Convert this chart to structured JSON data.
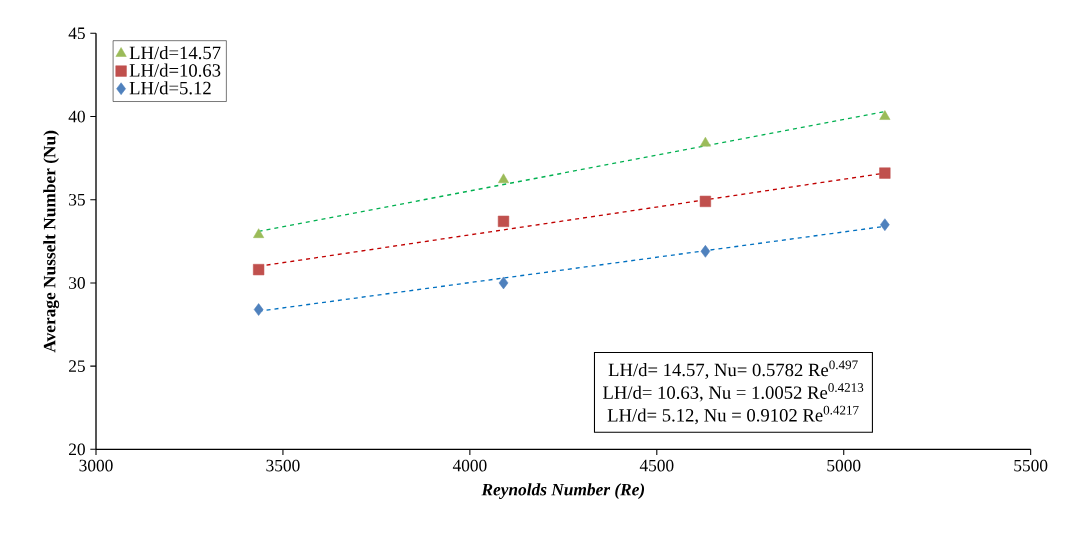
{
  "chart_data": {
    "type": "scatter",
    "xlabel": "Reynolds Number (Re)",
    "ylabel": "Average Nusselt Number (Nu)",
    "xlim": [
      3000,
      5500
    ],
    "xticks": [
      3000,
      3500,
      4000,
      4500,
      5000,
      5500
    ],
    "ylim": [
      20,
      45
    ],
    "yticks": [
      20,
      25,
      30,
      35,
      40,
      45
    ],
    "grid": false,
    "legend": "top left",
    "series": [
      {
        "name": "LH/d=14.57",
        "color": "#9bbb59",
        "marker": "triangle",
        "x": [
          3435,
          4090,
          4630,
          5110
        ],
        "values": [
          32.9,
          36.2,
          38.4,
          40.0
        ]
      },
      {
        "name": "LH/d=10.63",
        "color": "#c0504d",
        "marker": "square",
        "x": [
          3435,
          4090,
          4630,
          5110
        ],
        "values": [
          30.8,
          33.7,
          34.9,
          36.6
        ]
      },
      {
        "name": "LH/d=5.12",
        "color": "#4f81bd",
        "marker": "diamond",
        "x": [
          3435,
          4090,
          4630,
          5110
        ],
        "values": [
          28.4,
          30.0,
          31.9,
          33.5
        ]
      },
      {
        "type": "line",
        "color": "#00b050",
        "line_style": "dashed",
        "marker": "none",
        "x": [
          3435,
          5110
        ],
        "values": [
          33.1,
          40.3
        ]
      },
      {
        "type": "line",
        "color": "#c00000",
        "line_style": "dashed",
        "marker": "none",
        "x": [
          3435,
          5110
        ],
        "values": [
          31.0,
          36.6
        ]
      },
      {
        "type": "line",
        "color": "#0070c0",
        "line_style": "dashed",
        "marker": "none",
        "x": [
          3435,
          5110
        ],
        "values": [
          28.3,
          33.4
        ]
      }
    ],
    "annotations": [
      "LH/d= 14.57, Nu= 0.5782 Re$^{0.497}$",
      "LH/d= 10.63, Nu = 1.0052 Re$^{0.4213}$",
      "LH/d= 5.12, Nu = 0.9102 Re$^{0.4217}$"
    ]
  }
}
